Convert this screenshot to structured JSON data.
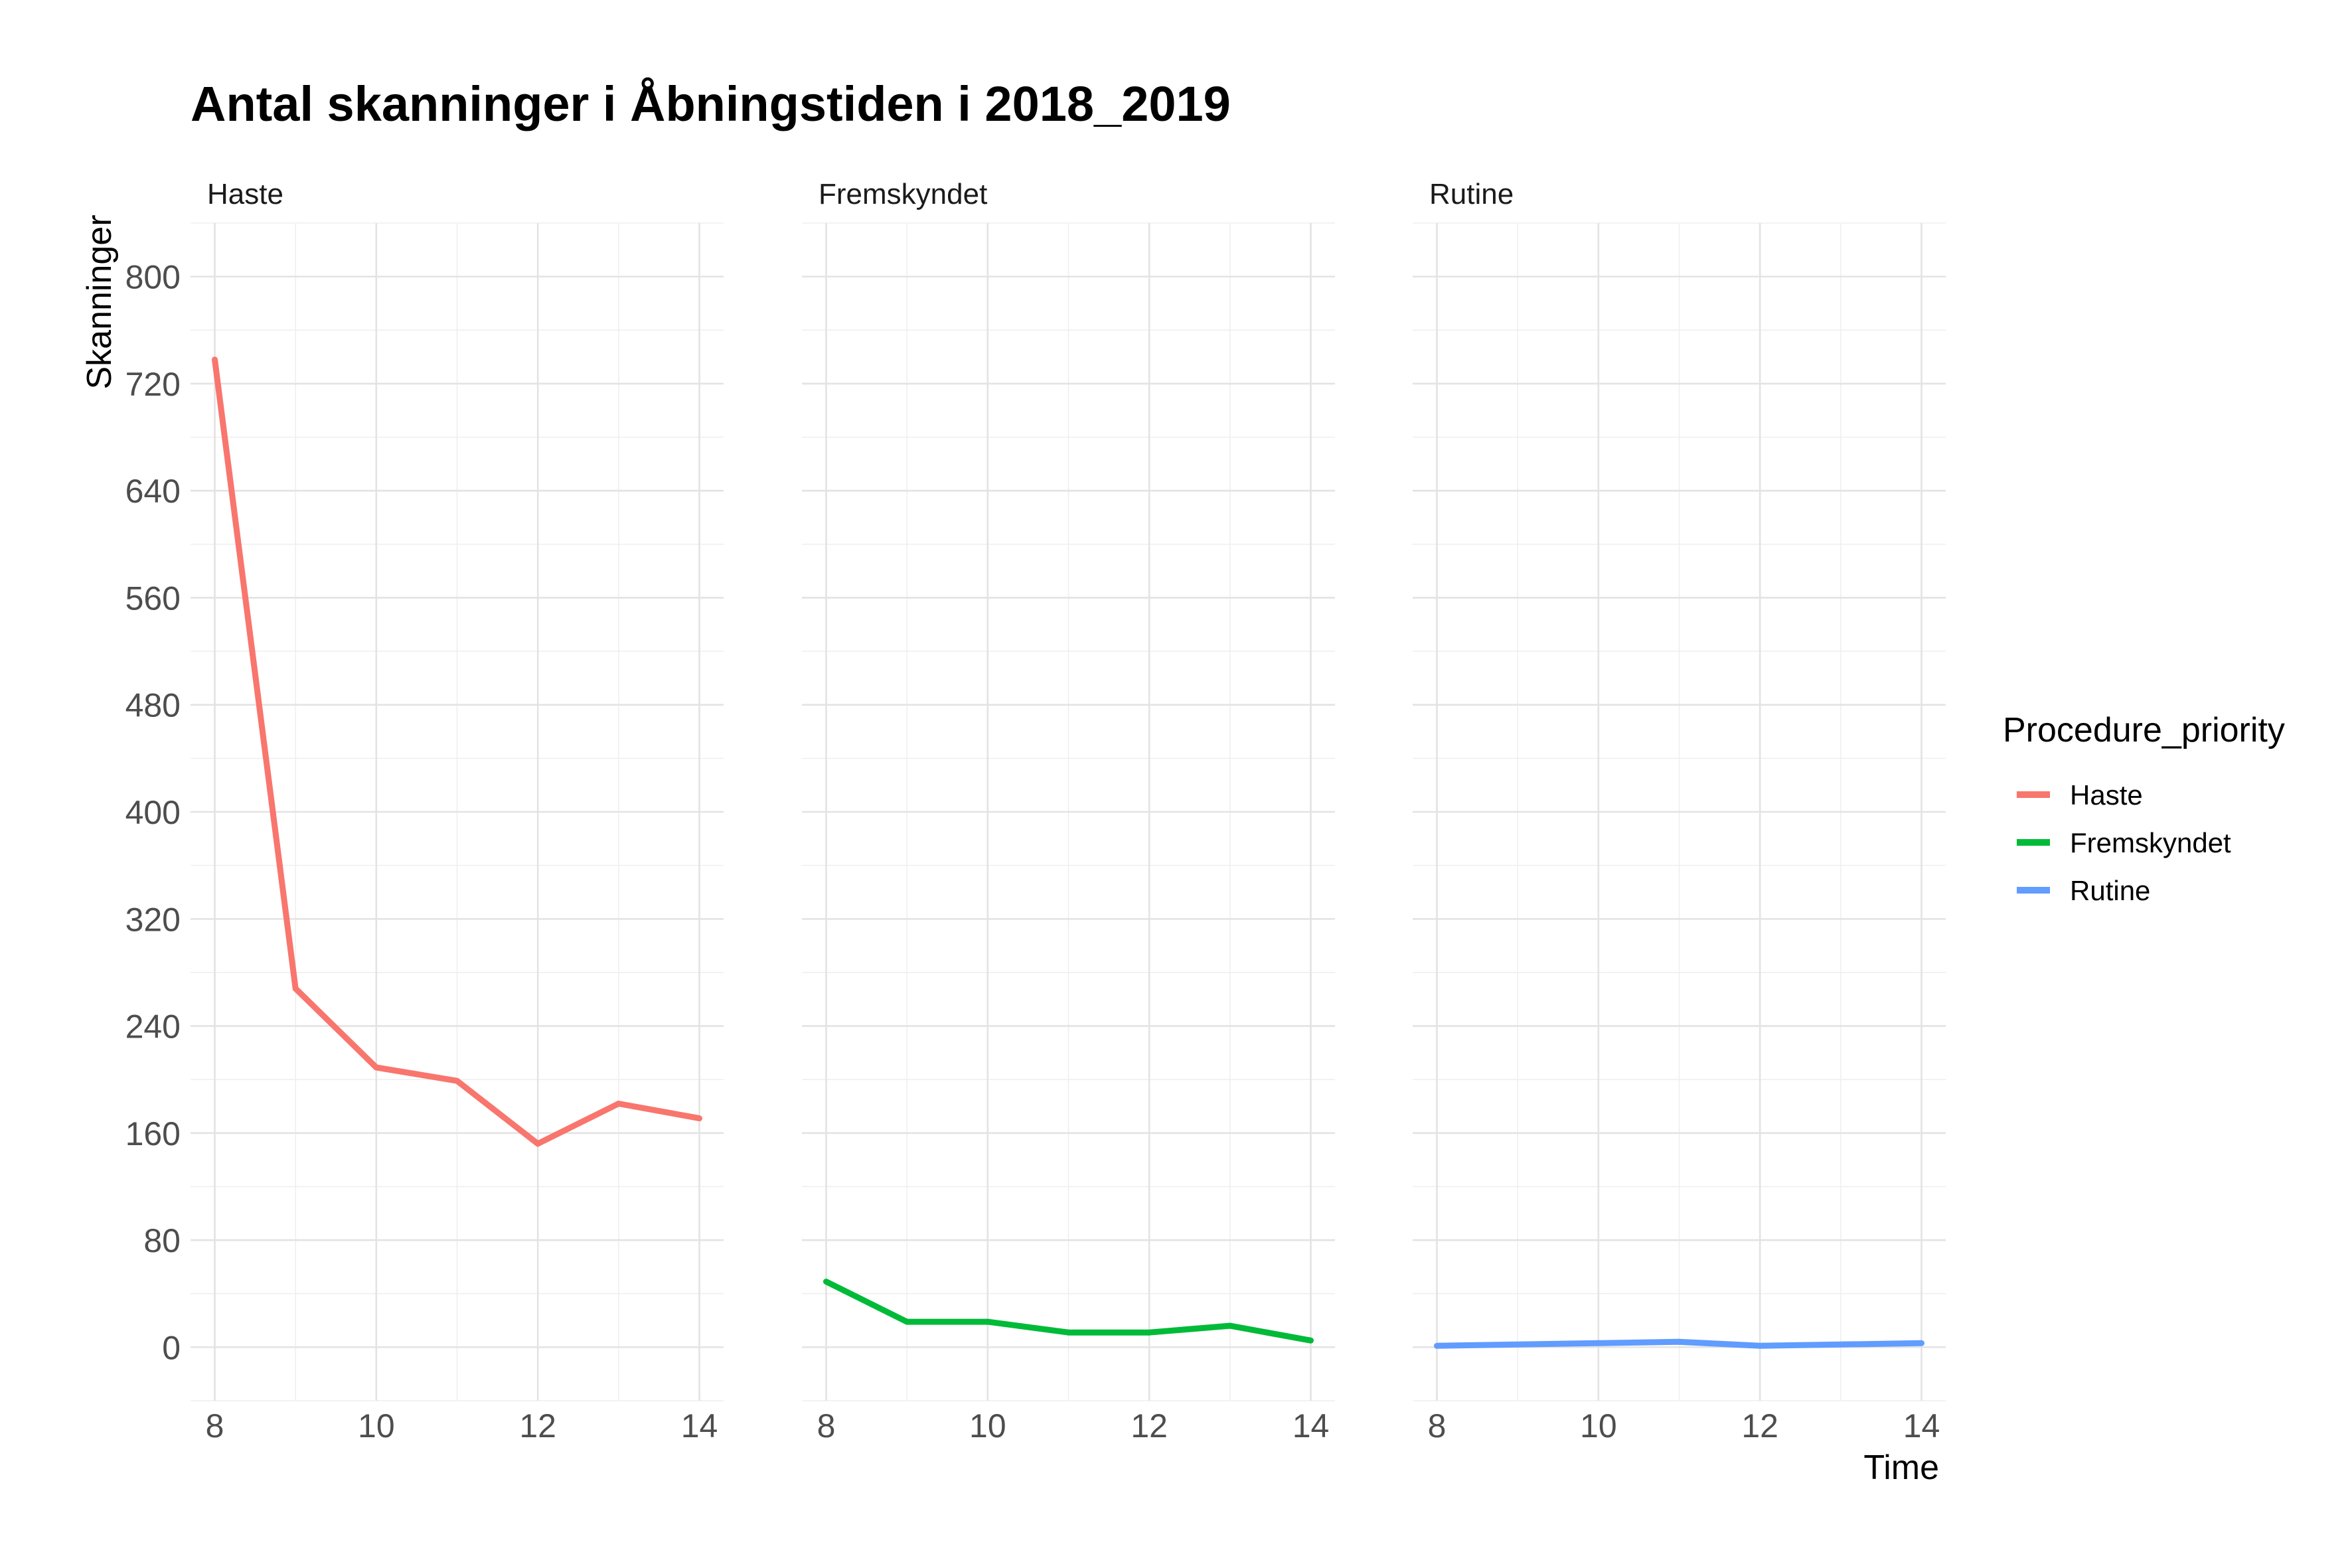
{
  "chart_data": {
    "type": "line",
    "title": "Antal skanninger i Åbningstiden i 2018_2019",
    "xlabel": "Time",
    "ylabel": "Skanninger",
    "x": [
      8,
      9,
      10,
      11,
      12,
      13,
      14
    ],
    "xlim": [
      7.7,
      14.3
    ],
    "ylim": [
      -40,
      840
    ],
    "x_ticks": [
      8,
      10,
      12,
      14
    ],
    "y_ticks": [
      0,
      80,
      160,
      240,
      320,
      400,
      480,
      560,
      640,
      720,
      800
    ],
    "grid": true,
    "facets": [
      "Haste",
      "Fremskyndet",
      "Rutine"
    ],
    "legend": {
      "title": "Procedure_priority",
      "position": "right"
    },
    "series": [
      {
        "name": "Haste",
        "color": "#F8766D",
        "values": [
          738,
          268,
          209,
          199,
          152,
          182,
          171
        ]
      },
      {
        "name": "Fremskyndet",
        "color": "#00BA38",
        "values": [
          49,
          19,
          19,
          11,
          11,
          16,
          5
        ]
      },
      {
        "name": "Rutine",
        "color": "#619CFF",
        "values": [
          1,
          2,
          3,
          4,
          1,
          2,
          3
        ]
      }
    ]
  }
}
